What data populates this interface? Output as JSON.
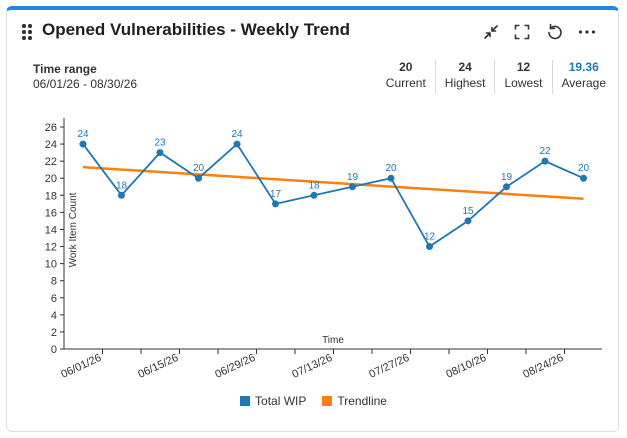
{
  "widget": {
    "title": "Opened Vulnerabilities - Weekly Trend",
    "icons": [
      "collapse-icon",
      "fullscreen-icon",
      "refresh-icon",
      "more-icon"
    ]
  },
  "time_range": {
    "label": "Time range",
    "value": "06/01/26 - 08/30/26"
  },
  "stats": [
    {
      "value": "20",
      "label": "Current"
    },
    {
      "value": "24",
      "label": "Highest"
    },
    {
      "value": "12",
      "label": "Lowest"
    },
    {
      "value": "19.36",
      "label": "Average"
    }
  ],
  "colors": {
    "accent": "#1e88e5",
    "series": "#1f77b4",
    "trend": "#ff7f0e"
  },
  "chart_data": {
    "type": "line",
    "xlabel": "Time",
    "ylabel": "Work Item Count",
    "ylim": [
      0,
      26
    ],
    "yticks": [
      0,
      2,
      4,
      6,
      8,
      10,
      12,
      14,
      16,
      18,
      20,
      22,
      24,
      26
    ],
    "x": [
      "06/01/26",
      "06/08/26",
      "06/15/26",
      "06/22/26",
      "06/29/26",
      "07/06/26",
      "07/13/26",
      "07/20/26",
      "07/27/26",
      "08/03/26",
      "08/10/26",
      "08/17/26",
      "08/24/26",
      "08/31/26"
    ],
    "xtick_labels": [
      "06/01/26",
      "06/15/26",
      "06/29/26",
      "07/13/26",
      "07/27/26",
      "08/10/26",
      "08/24/26"
    ],
    "series": [
      {
        "name": "Total WIP",
        "values": [
          24,
          18,
          23,
          20,
          24,
          17,
          18,
          19,
          20,
          12,
          15,
          19,
          22,
          20
        ]
      },
      {
        "name": "Trendline",
        "type": "line",
        "start": 21.3,
        "end": 17.6
      }
    ],
    "legend": "bottom-center",
    "grid": false
  }
}
